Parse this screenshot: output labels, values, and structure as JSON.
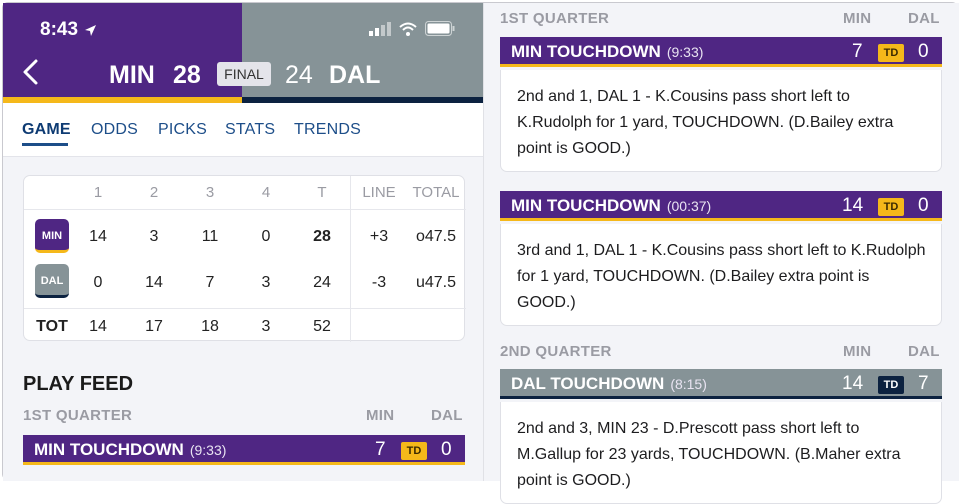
{
  "status_bar": {
    "time": "8:43"
  },
  "header": {
    "home_team": "MIN",
    "home_score": "28",
    "status": "FINAL",
    "away_score": "24",
    "away_team": "DAL",
    "colors": {
      "min_purple": "#4f2683",
      "min_gold": "#f5b81a",
      "dal_gray": "#869397",
      "dal_navy": "#0c2240"
    }
  },
  "tabs": [
    "GAME",
    "ODDS",
    "PICKS",
    "STATS",
    "TRENDS"
  ],
  "box_score": {
    "columns": [
      "1",
      "2",
      "3",
      "4",
      "T",
      "LINE",
      "TOTAL"
    ],
    "rows": [
      {
        "team": "MIN",
        "q1": "14",
        "q2": "3",
        "q3": "11",
        "q4": "0",
        "t": "28",
        "line": "+3",
        "total": "o47.5"
      },
      {
        "team": "DAL",
        "q1": "0",
        "q2": "14",
        "q3": "7",
        "q4": "3",
        "t": "24",
        "line": "-3",
        "total": "u47.5"
      }
    ],
    "tot": {
      "label": "TOT",
      "q1": "14",
      "q2": "17",
      "q3": "18",
      "q4": "3",
      "t": "52"
    }
  },
  "play_feed": {
    "title": "PLAY FEED",
    "min_label": "MIN",
    "dal_label": "DAL",
    "q1_label": "1ST QUARTER",
    "q2_label": "2ND QUARTER",
    "td_badge": "TD",
    "left_event": {
      "title": "MIN TOUCHDOWN",
      "time": "(9:33)",
      "min": "7",
      "dal": "0"
    },
    "events": [
      {
        "title": "MIN TOUCHDOWN",
        "time": "(9:33)",
        "min": "7",
        "dal": "0",
        "text": "2nd and 1, DAL 1 - K.Cousins pass short left to K.Rudolph for 1 yard, TOUCHDOWN. (D.Bailey extra point is GOOD.)"
      },
      {
        "title": "MIN TOUCHDOWN",
        "time": "(00:37)",
        "min": "14",
        "dal": "0",
        "text": "3rd and 1, DAL 1 - K.Cousins pass short left to K.Rudolph for 1 yard, TOUCHDOWN. (D.Bailey extra point is GOOD.)"
      },
      {
        "title": "DAL TOUCHDOWN",
        "time": "(8:15)",
        "min": "14",
        "dal": "7",
        "text": "2nd and 3, MIN 23 - D.Prescott pass short left to M.Gallup for 23 yards, TOUCHDOWN. (B.Maher extra point is GOOD.)"
      }
    ]
  }
}
